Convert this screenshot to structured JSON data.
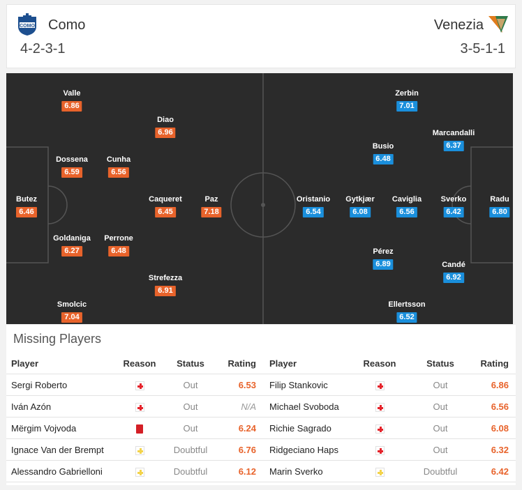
{
  "home": {
    "name": "Como",
    "formation": "4-2-3-1",
    "logo_icon": "como-crest-icon",
    "color": "#e8632b",
    "players": [
      {
        "name": "Butez",
        "rating": "6.46"
      },
      {
        "name": "Valle",
        "rating": "6.86"
      },
      {
        "name": "Dossena",
        "rating": "6.59"
      },
      {
        "name": "Goldaniga",
        "rating": "6.27"
      },
      {
        "name": "Smolcic",
        "rating": "7.04"
      },
      {
        "name": "Cunha",
        "rating": "6.56"
      },
      {
        "name": "Perrone",
        "rating": "6.48"
      },
      {
        "name": "Diao",
        "rating": "6.96"
      },
      {
        "name": "Caqueret",
        "rating": "6.45"
      },
      {
        "name": "Strefezza",
        "rating": "6.91"
      },
      {
        "name": "Paz",
        "rating": "7.18"
      }
    ]
  },
  "away": {
    "name": "Venezia",
    "formation": "3-5-1-1",
    "logo_icon": "venezia-winged-lion-icon",
    "color": "#1a8fdc",
    "players": [
      {
        "name": "Radu",
        "rating": "6.80"
      },
      {
        "name": "Marcandalli",
        "rating": "6.37"
      },
      {
        "name": "Sverko",
        "rating": "6.42"
      },
      {
        "name": "Candé",
        "rating": "6.92"
      },
      {
        "name": "Zerbin",
        "rating": "7.01"
      },
      {
        "name": "Busio",
        "rating": "6.48"
      },
      {
        "name": "Caviglia",
        "rating": "6.56"
      },
      {
        "name": "Pérez",
        "rating": "6.89"
      },
      {
        "name": "Ellertsson",
        "rating": "6.52"
      },
      {
        "name": "Gytkjær",
        "rating": "6.08"
      },
      {
        "name": "Oristanio",
        "rating": "6.54"
      }
    ]
  },
  "missing": {
    "title": "Missing Players",
    "headers": {
      "player": "Player",
      "reason": "Reason",
      "status": "Status",
      "rating": "Rating"
    },
    "home": [
      {
        "player": "Sergi Roberto",
        "reason": "injury-icon",
        "status": "Out",
        "rating": "6.53"
      },
      {
        "player": "Iván Azón",
        "reason": "injury-icon",
        "status": "Out",
        "rating": "N/A"
      },
      {
        "player": "Mërgim Vojvoda",
        "reason": "red-card-icon",
        "status": "Out",
        "rating": "6.24"
      },
      {
        "player": "Ignace Van der Brempt",
        "reason": "doubtful-icon",
        "status": "Doubtful",
        "rating": "6.76"
      },
      {
        "player": "Alessandro Gabrielloni",
        "reason": "doubtful-icon",
        "status": "Doubtful",
        "rating": "6.12"
      }
    ],
    "away": [
      {
        "player": "Filip Stankovic",
        "reason": "injury-icon",
        "status": "Out",
        "rating": "6.86"
      },
      {
        "player": "Michael Svoboda",
        "reason": "injury-icon",
        "status": "Out",
        "rating": "6.56"
      },
      {
        "player": "Richie Sagrado",
        "reason": "injury-icon",
        "status": "Out",
        "rating": "6.08"
      },
      {
        "player": "Ridgeciano Haps",
        "reason": "injury-icon",
        "status": "Out",
        "rating": "6.32"
      },
      {
        "player": "Marin Sverko",
        "reason": "doubtful-icon",
        "status": "Doubtful",
        "rating": "6.42"
      }
    ]
  }
}
